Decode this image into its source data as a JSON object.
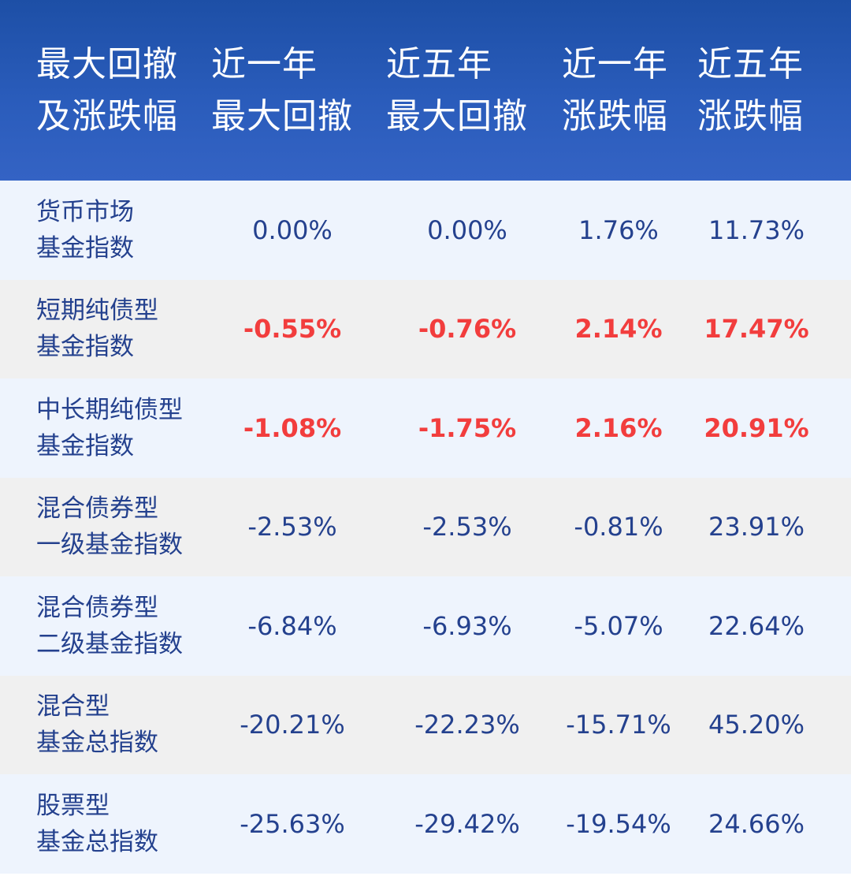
{
  "header": {
    "col0": [
      "最大回撤",
      "及涨跌幅"
    ],
    "col1": [
      "近一年",
      "最大回撤"
    ],
    "col2": [
      "近五年",
      "最大回撤"
    ],
    "col3": [
      "近一年",
      "涨跌幅"
    ],
    "col4": [
      "近五年",
      "涨跌幅"
    ]
  },
  "rows": [
    {
      "name": [
        "货币市场",
        "基金指数"
      ],
      "values": [
        "0.00%",
        "0.00%",
        "1.76%",
        "11.73%"
      ],
      "highlight": false
    },
    {
      "name": [
        "短期纯债型",
        "基金指数"
      ],
      "values": [
        "-0.55%",
        "-0.76%",
        "2.14%",
        "17.47%"
      ],
      "highlight": true
    },
    {
      "name": [
        "中长期纯债型",
        "基金指数"
      ],
      "values": [
        "-1.08%",
        "-1.75%",
        "2.16%",
        "20.91%"
      ],
      "highlight": true
    },
    {
      "name": [
        "混合债券型",
        "一级基金指数"
      ],
      "values": [
        "-2.53%",
        "-2.53%",
        "-0.81%",
        "23.91%"
      ],
      "highlight": false
    },
    {
      "name": [
        "混合债券型",
        "二级基金指数"
      ],
      "values": [
        "-6.84%",
        "-6.93%",
        "-5.07%",
        "22.64%"
      ],
      "highlight": false
    },
    {
      "name": [
        "混合型",
        "基金总指数"
      ],
      "values": [
        "-20.21%",
        "-22.23%",
        "-15.71%",
        "45.20%"
      ],
      "highlight": false
    },
    {
      "name": [
        "股票型",
        "基金总指数"
      ],
      "values": [
        "-25.63%",
        "-29.42%",
        "-19.54%",
        "24.66%"
      ],
      "highlight": false
    }
  ],
  "colors": {
    "header_bg": "#2a5cbb",
    "text": "#24418e",
    "highlight": "#f23d3d",
    "row_light_blue": "#eef4fd",
    "row_gray": "#f0f0f0"
  }
}
